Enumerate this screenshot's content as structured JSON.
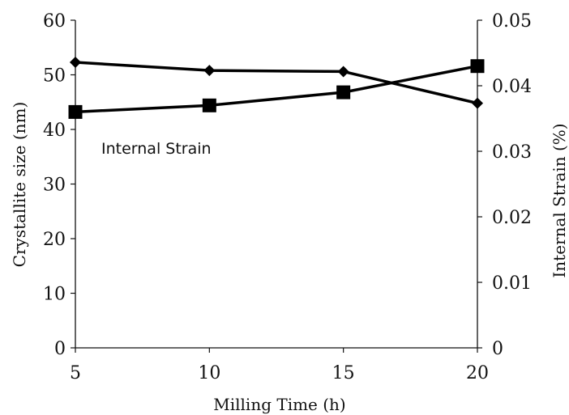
{
  "chart_data": {
    "type": "line",
    "x": [
      5,
      10,
      15,
      20
    ],
    "xlim": [
      5,
      20
    ],
    "x_ticks": [
      "5",
      "10",
      "15",
      "20"
    ],
    "xlabel": "Milling Time (h)",
    "ylabel_left": "Crystallite size (nm)",
    "ylim_left": [
      0,
      60
    ],
    "y_ticks_left": [
      "0",
      "10",
      "20",
      "30",
      "40",
      "50",
      "60"
    ],
    "ylabel_right": "Internal Strain (%)",
    "ylim_right": [
      0,
      0.05
    ],
    "y_ticks_right": [
      "0",
      "0.01",
      "0.02",
      "0.03",
      "0.04",
      "0.05"
    ],
    "series": [
      {
        "axis": "left",
        "marker": "diamond",
        "color": "#000000",
        "values": [
          52.3,
          50.8,
          50.6,
          44.8
        ]
      },
      {
        "axis": "right",
        "marker": "square",
        "color": "#000000",
        "values": [
          0.036,
          0.037,
          0.039,
          0.043
        ]
      }
    ],
    "annotations": [
      {
        "text": "Internal Strain"
      }
    ],
    "grid": false,
    "legend": "none"
  }
}
